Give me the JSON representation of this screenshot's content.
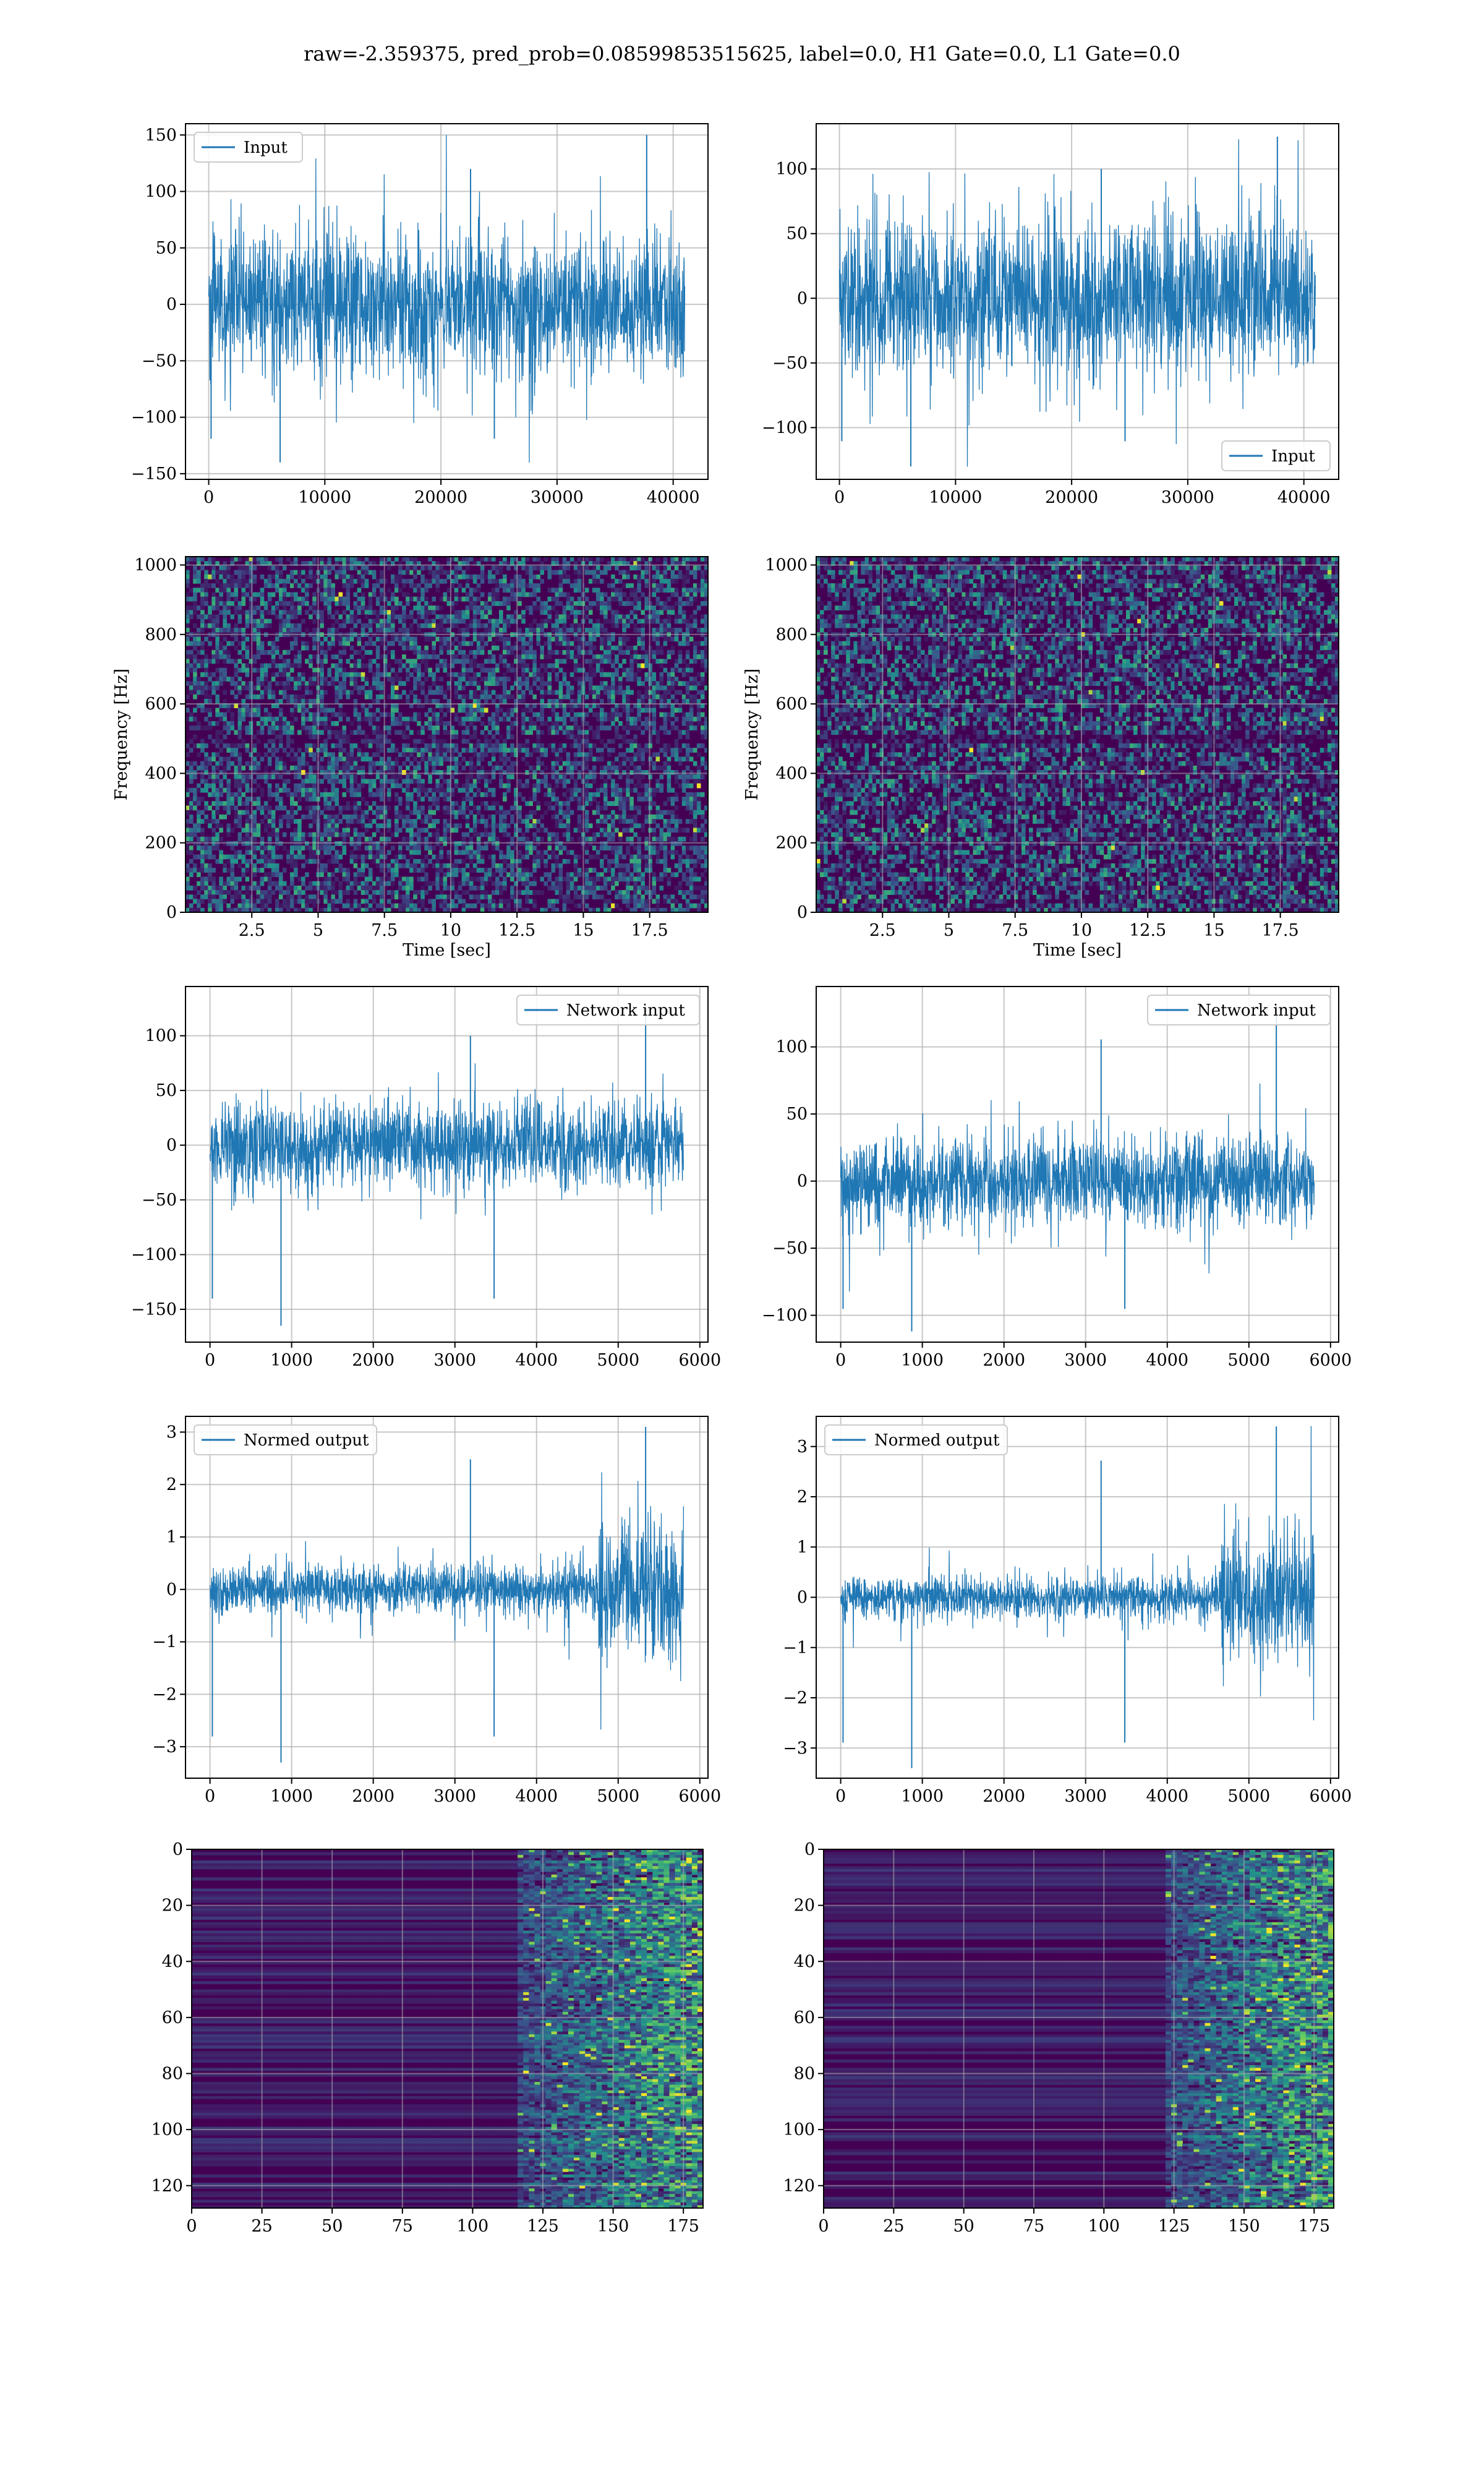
{
  "suptitle": "raw=-2.359375, pred_prob=0.08599853515625, label=0.0, H1 Gate=0.0, L1 Gate=0.0",
  "colors": {
    "line": "#1f77b4",
    "grid": "#b0b0b0",
    "viridis_dark": "#440154",
    "viridis_mid": "#3b528b",
    "viridis_teal": "#21918c",
    "viridis_green": "#5ec962",
    "viridis_yellow": "#fde725"
  },
  "chart_data": [
    {
      "id": "r0c0",
      "type": "line",
      "grid": true,
      "title": "",
      "xlabel": "",
      "ylabel": "",
      "legend": {
        "position": "upper-left"
      },
      "series": [
        {
          "name": "Input",
          "n_samples": 41000,
          "mean": 0,
          "noise_envelope": 75,
          "peak_min": -140,
          "peak_max": 150
        }
      ],
      "xlim": [
        -2000,
        43000
      ],
      "ylim": [
        -155,
        160
      ],
      "xticks": [
        0,
        10000,
        20000,
        30000,
        40000
      ],
      "yticks": [
        -150,
        -100,
        -50,
        0,
        50,
        100,
        150
      ]
    },
    {
      "id": "r0c1",
      "type": "line",
      "grid": true,
      "title": "",
      "xlabel": "",
      "ylabel": "",
      "legend": {
        "position": "lower-right"
      },
      "series": [
        {
          "name": "Input",
          "n_samples": 41000,
          "mean": 0,
          "noise_envelope": 70,
          "peak_min": -130,
          "peak_max": 125
        }
      ],
      "xlim": [
        -2000,
        43000
      ],
      "ylim": [
        -140,
        135
      ],
      "xticks": [
        0,
        10000,
        20000,
        30000,
        40000
      ],
      "yticks": [
        -100,
        -50,
        0,
        50,
        100
      ]
    },
    {
      "id": "r1c0",
      "type": "heatmap",
      "grid": true,
      "title": "",
      "xlabel": "Time [sec]",
      "ylabel": "Frequency [Hz]",
      "colormap": "viridis",
      "description_values": "spectrogram of noise, 0-1024 Hz, 0-19.7 s",
      "xlim": [
        0,
        19.7
      ],
      "ylim": [
        0,
        1024
      ],
      "xticks": [
        2.5,
        5.0,
        7.5,
        10.0,
        12.5,
        15.0,
        17.5
      ],
      "yticks": [
        0,
        200,
        400,
        600,
        800,
        1000
      ]
    },
    {
      "id": "r1c1",
      "type": "heatmap",
      "grid": true,
      "title": "",
      "xlabel": "Time [sec]",
      "ylabel": "Frequency [Hz]",
      "colormap": "viridis",
      "xlim": [
        0,
        19.7
      ],
      "ylim": [
        0,
        1024
      ],
      "xticks": [
        2.5,
        5.0,
        7.5,
        10.0,
        12.5,
        15.0,
        17.5
      ],
      "yticks": [
        0,
        200,
        400,
        600,
        800,
        1000
      ]
    },
    {
      "id": "r2c0",
      "type": "line",
      "grid": true,
      "title": "",
      "xlabel": "",
      "ylabel": "",
      "legend": {
        "position": "upper-right"
      },
      "series": [
        {
          "name": "Network input",
          "n_samples": 5800,
          "mean": 0,
          "noise_envelope": 45,
          "peak_min": -165,
          "peak_max": 125
        }
      ],
      "xlim": [
        -300,
        6100
      ],
      "ylim": [
        -180,
        145
      ],
      "xticks": [
        0,
        1000,
        2000,
        3000,
        4000,
        5000,
        6000
      ],
      "yticks": [
        -150,
        -100,
        -50,
        0,
        50,
        100
      ]
    },
    {
      "id": "r2c1",
      "type": "line",
      "grid": true,
      "title": "",
      "xlabel": "",
      "ylabel": "",
      "legend": {
        "position": "upper-right"
      },
      "series": [
        {
          "name": "Network input",
          "n_samples": 5800,
          "mean": 0,
          "noise_envelope": 40,
          "peak_min": -112,
          "peak_max": 132
        }
      ],
      "xlim": [
        -300,
        6100
      ],
      "ylim": [
        -120,
        145
      ],
      "xticks": [
        0,
        1000,
        2000,
        3000,
        4000,
        5000,
        6000
      ],
      "yticks": [
        -100,
        -50,
        0,
        50,
        100
      ]
    },
    {
      "id": "r3c0",
      "type": "line",
      "grid": true,
      "title": "",
      "xlabel": "",
      "ylabel": "",
      "legend": {
        "position": "upper-left"
      },
      "series": [
        {
          "name": "Normed output",
          "n_samples": 5800,
          "mean": 0,
          "noise_envelope": 0.55,
          "burst_start": 4750,
          "burst_envelope": 1.6,
          "peak_min": -3.3,
          "peak_max": 3.1
        }
      ],
      "xlim": [
        -300,
        6100
      ],
      "ylim": [
        -3.6,
        3.3
      ],
      "xticks": [
        0,
        1000,
        2000,
        3000,
        4000,
        5000,
        6000
      ],
      "yticks": [
        -3,
        -2,
        -1,
        0,
        1,
        2,
        3
      ]
    },
    {
      "id": "r3c1",
      "type": "line",
      "grid": true,
      "title": "",
      "xlabel": "",
      "ylabel": "",
      "legend": {
        "position": "upper-left"
      },
      "series": [
        {
          "name": "Normed output",
          "n_samples": 5800,
          "mean": 0,
          "noise_envelope": 0.5,
          "burst_start": 4650,
          "burst_envelope": 1.5,
          "peak_min": -3.4,
          "peak_max": 3.4
        }
      ],
      "xlim": [
        -300,
        6100
      ],
      "ylim": [
        -3.6,
        3.6
      ],
      "xticks": [
        0,
        1000,
        2000,
        3000,
        4000,
        5000,
        6000
      ],
      "yticks": [
        -3,
        -2,
        -1,
        0,
        1,
        2,
        3
      ]
    },
    {
      "id": "r4c0",
      "type": "heatmap",
      "grid": true,
      "title": "",
      "xlabel": "",
      "ylabel": "",
      "colormap": "viridis",
      "rows": 128,
      "cols": 182,
      "y_inverted": true,
      "activity_onset_col": 115,
      "xlim": [
        0,
        182
      ],
      "ylim": [
        128,
        0
      ],
      "xticks": [
        0,
        25,
        50,
        75,
        100,
        125,
        150,
        175
      ],
      "yticks": [
        0,
        20,
        40,
        60,
        80,
        100,
        120
      ]
    },
    {
      "id": "r4c1",
      "type": "heatmap",
      "grid": true,
      "title": "",
      "xlabel": "",
      "ylabel": "",
      "colormap": "viridis",
      "rows": 128,
      "cols": 182,
      "y_inverted": true,
      "activity_onset_col": 120,
      "xlim": [
        0,
        182
      ],
      "ylim": [
        128,
        0
      ],
      "xticks": [
        0,
        25,
        50,
        75,
        100,
        125,
        150,
        175
      ],
      "yticks": [
        0,
        20,
        40,
        60,
        80,
        100,
        120
      ]
    }
  ]
}
